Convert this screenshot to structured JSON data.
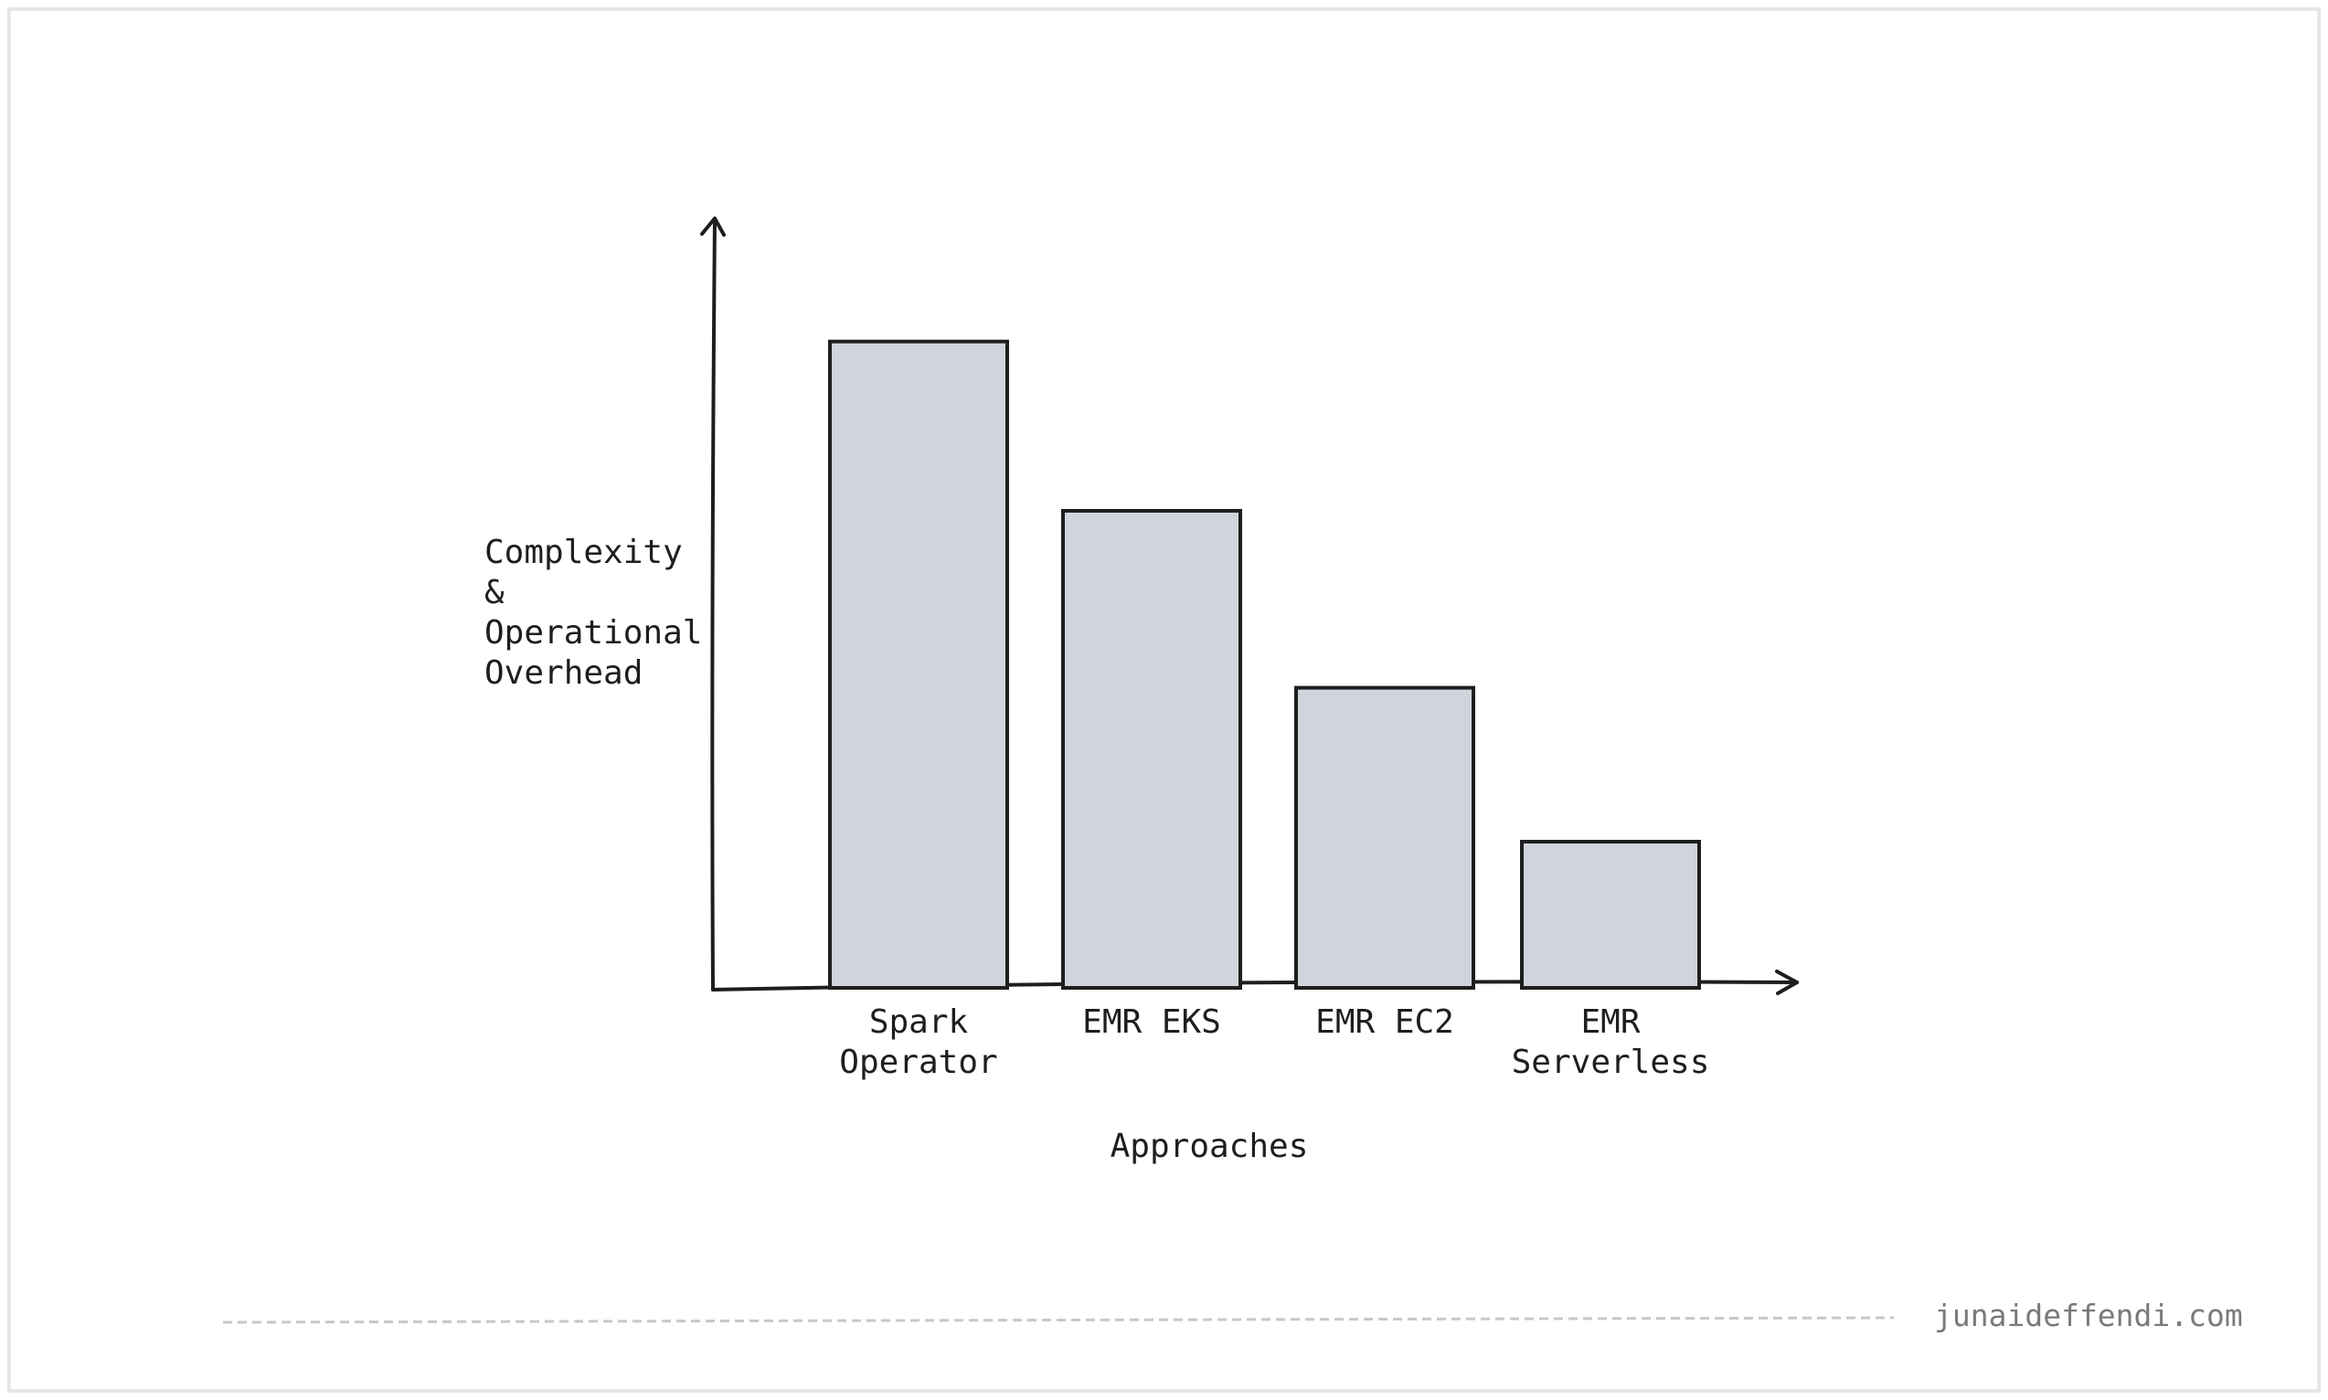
{
  "chart_data": {
    "type": "bar",
    "ylabel": "Complexity & Operational Overhead",
    "xlabel": "Approaches",
    "categories": [
      "Spark Operator",
      "EMR EKS",
      "EMR EC2",
      "EMR Serverless"
    ],
    "values": [
      84,
      62,
      39,
      19
    ],
    "color": "#d0d4dc",
    "ylim": [
      0,
      100
    ]
  },
  "footer": {
    "text": "junaideffendi.com"
  }
}
